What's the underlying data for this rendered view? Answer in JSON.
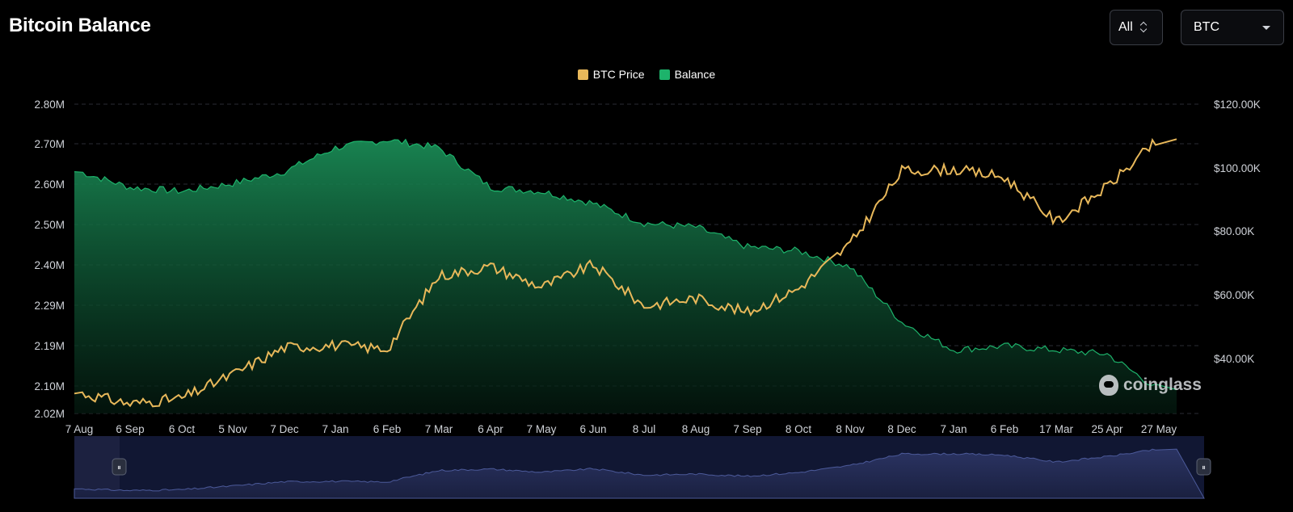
{
  "header": {
    "title": "Bitcoin Balance",
    "range_label": "All",
    "asset_label": "BTC"
  },
  "colors": {
    "background": "#000000",
    "price": "#e8b85a",
    "balance": "#1db36b",
    "navigator_fill": "#22294a"
  },
  "watermark": "coinglass",
  "chart_data": {
    "type": "area",
    "title": "Bitcoin Balance",
    "legend": [
      "BTC Price",
      "Balance"
    ],
    "legend_position": "top-center",
    "grid": true,
    "x_ticks": [
      "7 Aug",
      "6 Sep",
      "6 Oct",
      "5 Nov",
      "7 Dec",
      "7 Jan",
      "6 Feb",
      "7 Mar",
      "6 Apr",
      "7 May",
      "6 Jun",
      "8 Jul",
      "8 Aug",
      "7 Sep",
      "8 Oct",
      "8 Nov",
      "8 Dec",
      "7 Jan",
      "6 Feb",
      "17 Mar",
      "25 Apr",
      "27 May"
    ],
    "y_left_ticks": [
      "2.80M",
      "2.70M",
      "2.60M",
      "2.50M",
      "2.40M",
      "2.29M",
      "2.19M",
      "2.10M",
      "2.02M"
    ],
    "y_right_ticks": [
      "$120.00K",
      "$100.00K",
      "$80.00K",
      "$60.00K",
      "$40.00K"
    ],
    "y_left_range": [
      2020000,
      2800000
    ],
    "y_right_range": [
      20000,
      120000
    ],
    "series": [
      {
        "name": "Balance",
        "axis": "left",
        "type": "area",
        "x": [
          "7 Aug",
          "6 Sep",
          "6 Oct",
          "5 Nov",
          "7 Dec",
          "7 Jan",
          "6 Feb",
          "7 Mar",
          "6 Apr",
          "7 May",
          "6 Jun",
          "8 Jul",
          "8 Aug",
          "7 Sep",
          "8 Oct",
          "8 Nov",
          "8 Dec",
          "7 Jan",
          "6 Feb",
          "17 Mar",
          "25 Apr",
          "27 May"
        ],
        "values": [
          2630000,
          2590000,
          2580000,
          2600000,
          2630000,
          2690000,
          2710000,
          2690000,
          2590000,
          2580000,
          2550000,
          2500000,
          2490000,
          2440000,
          2430000,
          2390000,
          2250000,
          2180000,
          2190000,
          2180000,
          2170000,
          2080000
        ]
      },
      {
        "name": "BTC Price",
        "axis": "right",
        "type": "line",
        "x": [
          "7 Aug",
          "6 Sep",
          "6 Oct",
          "5 Nov",
          "7 Dec",
          "7 Jan",
          "6 Feb",
          "7 Mar",
          "6 Apr",
          "7 May",
          "6 Jun",
          "8 Jul",
          "8 Aug",
          "7 Sep",
          "8 Oct",
          "8 Nov",
          "8 Dec",
          "7 Jan",
          "6 Feb",
          "17 Mar",
          "25 Apr",
          "27 May"
        ],
        "values": [
          29200,
          25800,
          27500,
          35000,
          43500,
          44200,
          43000,
          66000,
          69000,
          62500,
          69500,
          56500,
          59000,
          54500,
          62000,
          76000,
          99000,
          99500,
          97000,
          83000,
          94000,
          109000
        ]
      }
    ]
  },
  "navigator": {
    "handle_left": "⏸",
    "handle_right": "⏸"
  }
}
